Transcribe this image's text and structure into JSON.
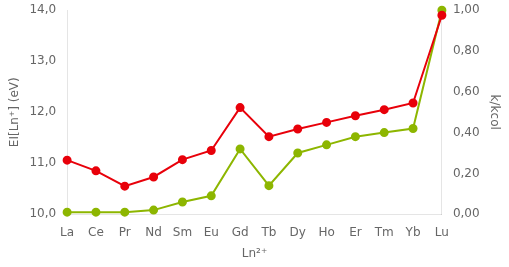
{
  "chart_data": {
    "type": "line",
    "x_label": "Ln²⁺",
    "y_label": "EI[Ln⁺] (eV)",
    "y2_label": "k/kcol",
    "categories": [
      "La",
      "Ce",
      "Pr",
      "Nd",
      "Sm",
      "Eu",
      "Gd",
      "Tb",
      "Dy",
      "Ho",
      "Er",
      "Tm",
      "Yb",
      "Lu"
    ],
    "series": [
      {
        "color": "#E8000A",
        "marker": "circle",
        "values": [
          11.06,
          10.85,
          10.55,
          10.73,
          11.07,
          11.25,
          12.09,
          11.52,
          11.67,
          11.8,
          11.93,
          12.05,
          12.18,
          13.9
        ]
      },
      {
        "color": "#8DB600",
        "marker": "circle",
        "axis": "y2",
        "values": [
          0.01,
          0.01,
          0.01,
          0.02,
          0.06,
          0.09,
          0.32,
          0.14,
          0.3,
          0.34,
          0.38,
          0.4,
          0.42,
          1.0
        ]
      }
    ],
    "ylim": [
      10.0,
      14.0
    ],
    "yticks": [
      {
        "value": 10.0,
        "label": "10,0"
      },
      {
        "value": 11.0,
        "label": "11,0"
      },
      {
        "value": 12.0,
        "label": "12,0"
      },
      {
        "value": 13.0,
        "label": "13,0"
      },
      {
        "value": 14.0,
        "label": "14,0"
      }
    ],
    "y2lim": [
      0.0,
      1.0
    ],
    "y2ticks": [
      {
        "value": 0.0,
        "label": "0,00"
      },
      {
        "value": 0.2,
        "label": "0,20"
      },
      {
        "value": 0.4,
        "label": "0,40"
      },
      {
        "value": 0.6,
        "label": "0,60"
      },
      {
        "value": 0.8,
        "label": "0,80"
      },
      {
        "value": 1.0,
        "label": "1,00"
      }
    ],
    "grid": false,
    "legend": false
  }
}
